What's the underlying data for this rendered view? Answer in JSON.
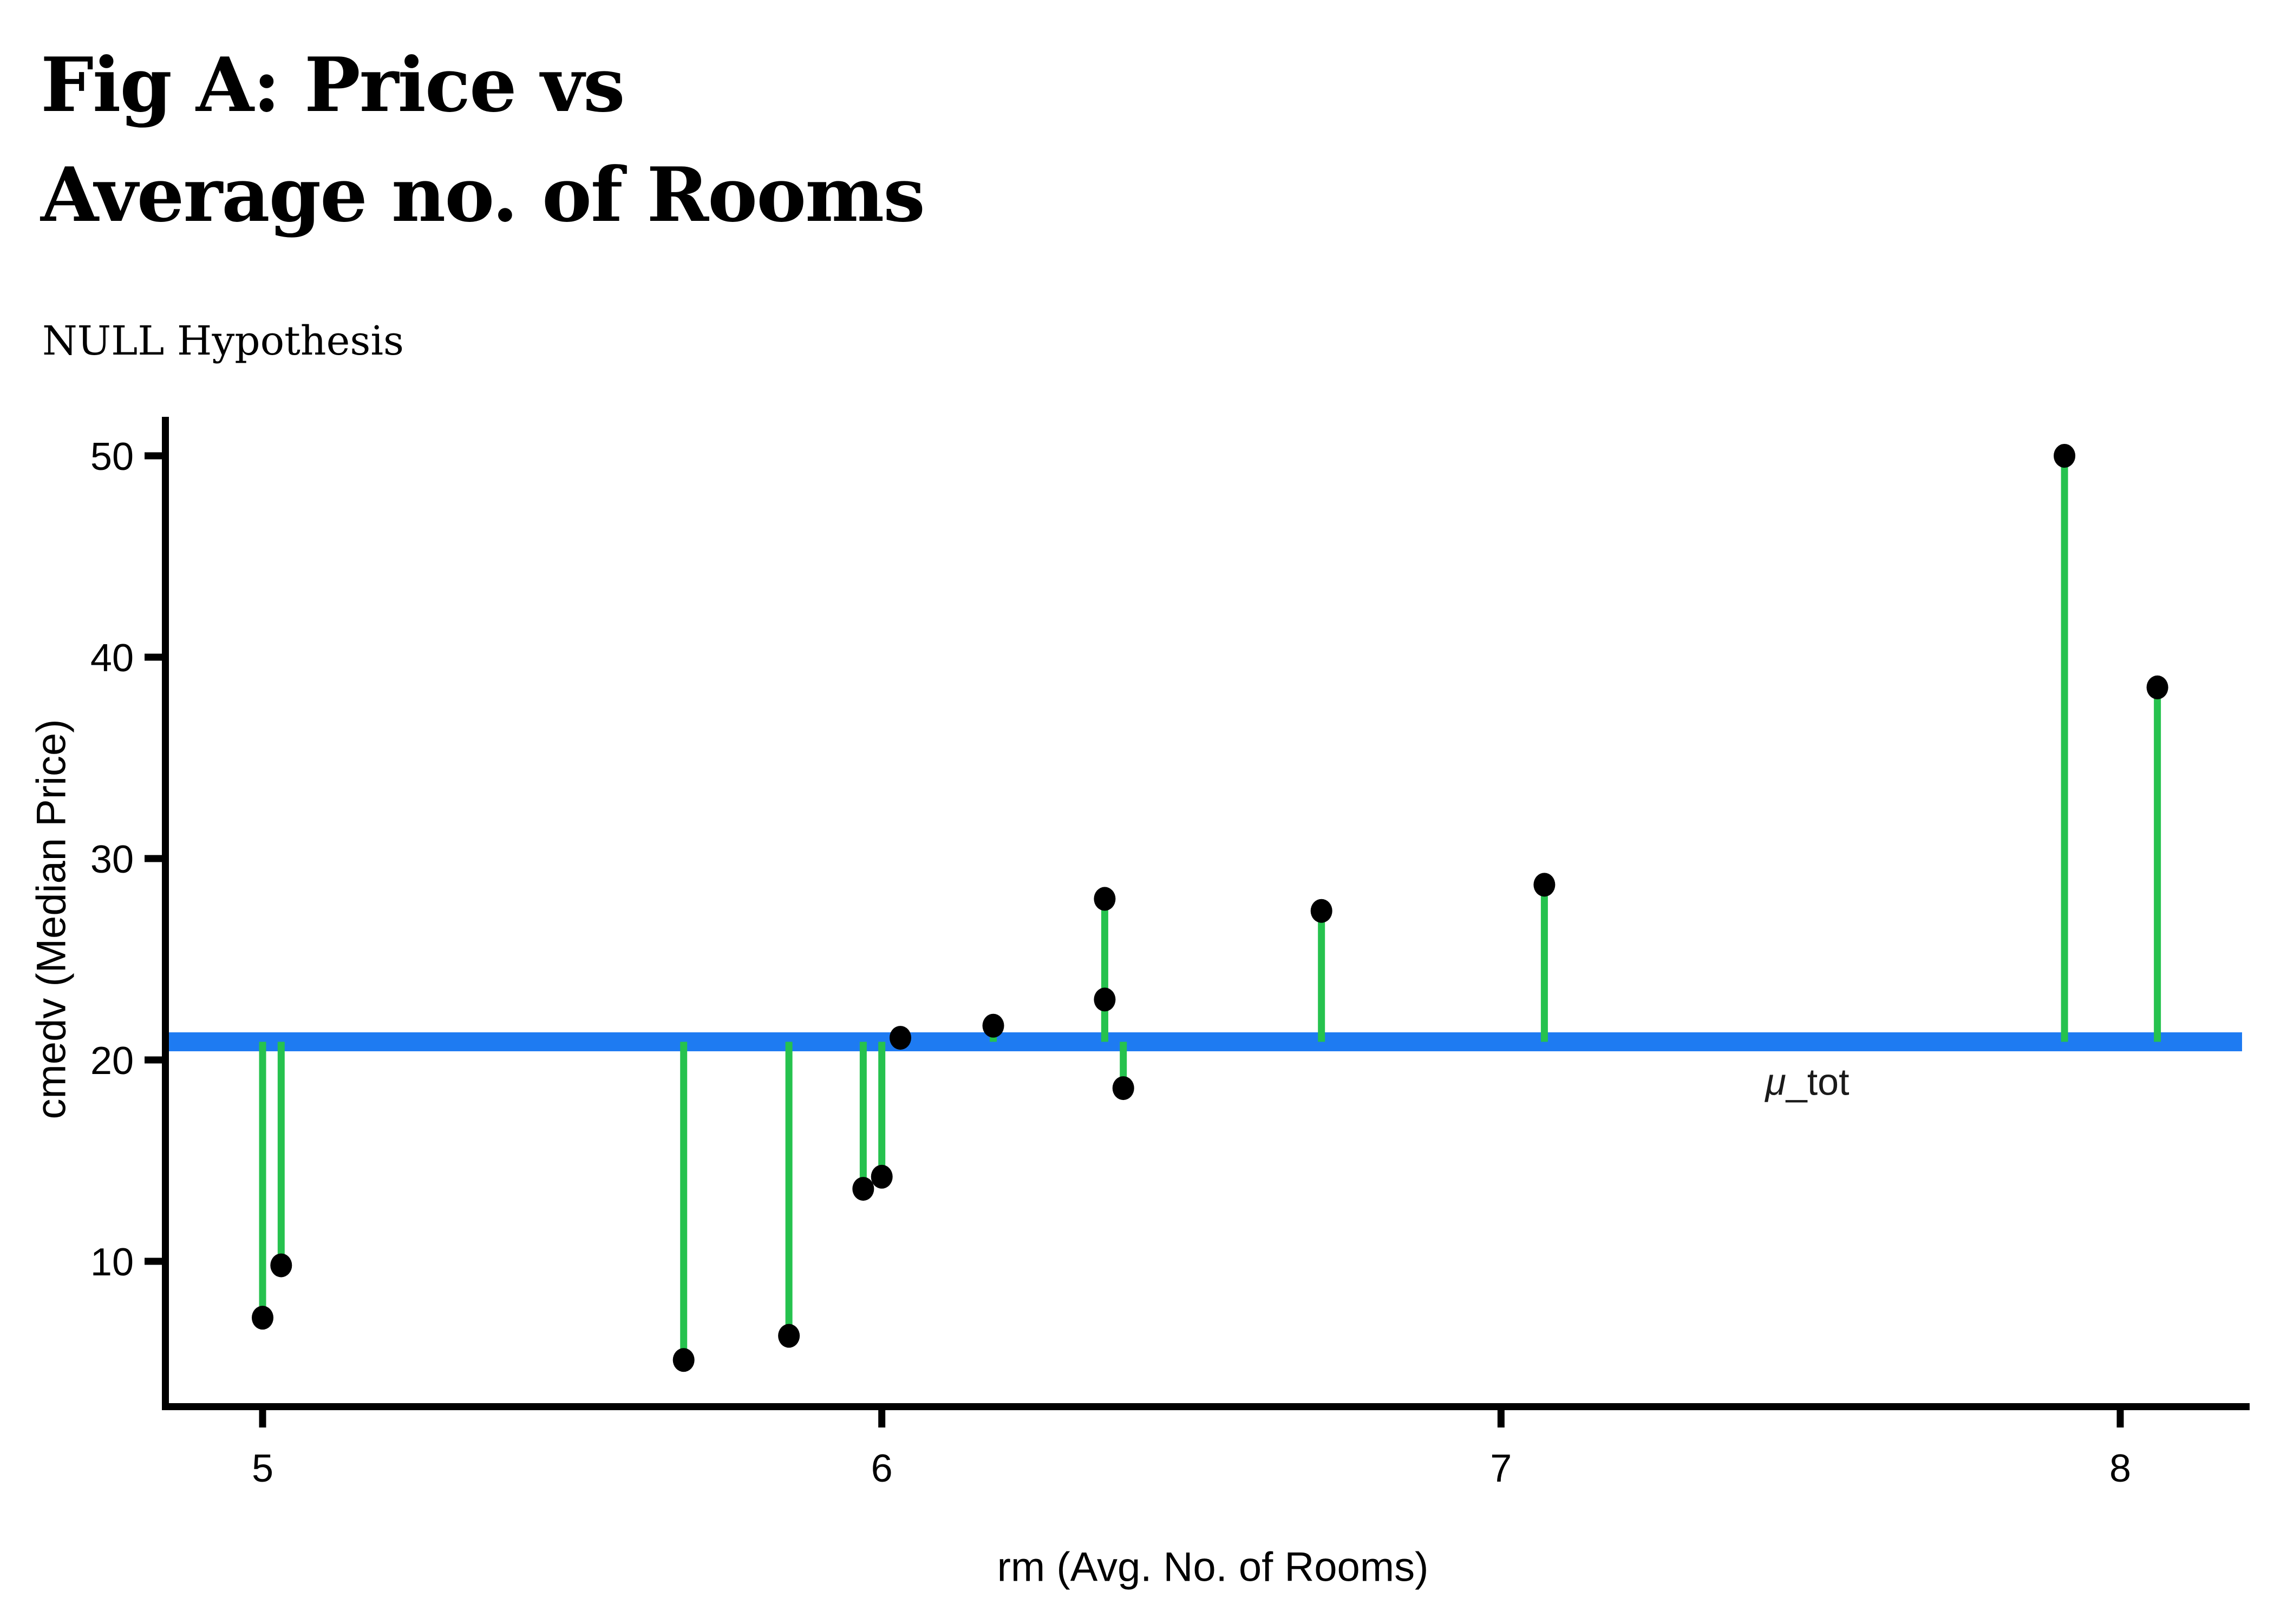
{
  "header": {
    "title_line1": "Fig A: Price vs",
    "title_line2": "Average no. of Rooms",
    "subtitle": "NULL Hypothesis"
  },
  "chart_data": {
    "type": "scatter",
    "title": "Fig A: Price vs Average no. of Rooms",
    "subtitle": "NULL Hypothesis",
    "xlabel": "rm (Avg. No. of Rooms)",
    "ylabel": "cmedv (Median Price)",
    "x_ticks": [
      5,
      6,
      7,
      8
    ],
    "y_ticks": [
      10,
      20,
      30,
      40,
      50
    ],
    "xlim": [
      4.84,
      8.2
    ],
    "ylim": [
      2.8,
      51.9
    ],
    "grid": false,
    "legend_position": "none",
    "mean_line": {
      "label": "μ_tot",
      "value": 20.9,
      "color": "#1e7bf2"
    },
    "residual_color": "#26c24e",
    "point_color": "#000000",
    "axis_color": "#000000",
    "points": [
      {
        "rm": 5.0,
        "cmedv": 7.2
      },
      {
        "rm": 5.03,
        "cmedv": 9.8
      },
      {
        "rm": 5.68,
        "cmedv": 5.1
      },
      {
        "rm": 5.85,
        "cmedv": 6.3
      },
      {
        "rm": 5.97,
        "cmedv": 13.6
      },
      {
        "rm": 6.0,
        "cmedv": 14.2
      },
      {
        "rm": 6.03,
        "cmedv": 21.1
      },
      {
        "rm": 6.18,
        "cmedv": 21.7
      },
      {
        "rm": 6.36,
        "cmedv": 28.0
      },
      {
        "rm": 6.36,
        "cmedv": 23.0
      },
      {
        "rm": 6.39,
        "cmedv": 18.6
      },
      {
        "rm": 6.71,
        "cmedv": 27.4
      },
      {
        "rm": 7.07,
        "cmedv": 28.7
      },
      {
        "rm": 7.91,
        "cmedv": 50.0
      },
      {
        "rm": 8.06,
        "cmedv": 38.5
      }
    ]
  }
}
